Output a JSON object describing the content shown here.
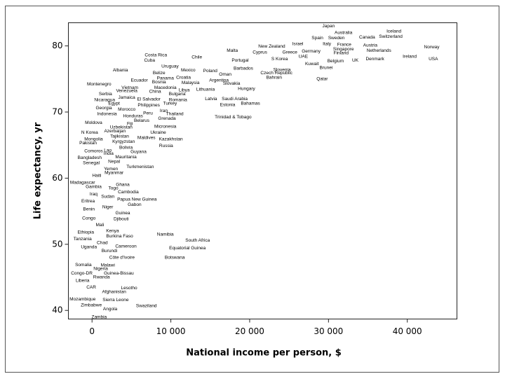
{
  "chart_data": {
    "type": "scatter",
    "xlabel": "National income per person, $",
    "ylabel": "Life expectancy, yr",
    "xlim": [
      -3000,
      46300
    ],
    "ylim": [
      38.7,
      83.5
    ],
    "xticks": [
      0,
      {
        "value": 10000,
        "label": "10 000"
      },
      {
        "value": 20000,
        "label": "20 000"
      },
      {
        "value": 30000,
        "label": "30 000"
      },
      {
        "value": 40000,
        "label": "40 000"
      }
    ],
    "yticks": [
      40,
      50,
      60,
      70,
      80
    ],
    "color": "#000000",
    "labels": [
      "Japan",
      "Iceland",
      "Australia",
      "Switzerland",
      "Spain",
      "Sweden",
      "Canada",
      "Israel",
      "Italy",
      "France",
      "Austria",
      "New Zealand",
      "Norway",
      "Malta",
      "Cyprus",
      "Greece",
      "Germany",
      "Singapore",
      "Finland",
      "Netherlands",
      "Ireland",
      "USA",
      "Costa Rica",
      "Chile",
      "Cuba",
      "Portugal",
      "S Korea",
      "UAE",
      "Belgium",
      "UK",
      "Denmark",
      "Kuwait",
      "Brunei",
      "Uruguay",
      "Albania",
      "Belize",
      "Mexico",
      "Poland",
      "Barbados",
      "Slovenia",
      "Czech Republic",
      "Bahrain",
      "Qatar",
      "Oman",
      "Panama",
      "Croatia",
      "Ecuador",
      "Bosnia",
      "Argentina",
      "Montenegro",
      "Malaysia",
      "Slovakia",
      "Macedonia",
      "Vietnam",
      "Libya",
      "Lithuania",
      "Hungary",
      "Venezuela",
      "China",
      "Serbia",
      "Bulgaria",
      "Jamaica",
      "Nicaragua",
      "Egypt",
      "El Salvador",
      "Romania",
      "Latvia",
      "Saudi Arabia",
      "Bahamas",
      "Turkey",
      "Estonia",
      "Philippines",
      "Georgia",
      "Morocco",
      "Iran",
      "Peru",
      "Thailand",
      "Indonesia",
      "Honduras",
      "Trinidad & Tobago",
      "Grenada",
      "Belarus",
      "Fiji",
      "Moldova",
      "Micronesia",
      "Uzbekistan",
      "Ukraine",
      "N Korea",
      "Azerbaijan",
      "Tajikistan",
      "Mongolia",
      "Maldives",
      "Kazakhstan",
      "Pakistan",
      "Kyrgyzstan",
      "Russia",
      "Bolivia",
      "Comoros",
      "Lao",
      "Guyana",
      "India",
      "Mauritania",
      "Bangladesh",
      "Nepal",
      "Senegal",
      "Turkmenistan",
      "Yemen",
      "Myanmar",
      "Haiti",
      "Madagascar",
      "Ghana",
      "Gambia",
      "Togo",
      "Cambodia",
      "Iraq",
      "Sudan",
      "Papua New Guinea",
      "Eritrea",
      "Gabon",
      "Niger",
      "Benin",
      "Guinea",
      "Congo",
      "Djibouti",
      "Mali",
      "Kenya",
      "Ethiopia",
      "Namibia",
      "Burkina Faso",
      "Tanzania",
      "South Africa",
      "Chad",
      "Uganda",
      "Cameroon",
      "Equatorial Guinea",
      "Burundi",
      "Côte d'Ivoire",
      "Botswana",
      "Somalia",
      "Malawi",
      "Nigeria",
      "Congo-DR",
      "Guinea-Bissau",
      "Rwanda",
      "Liberia",
      "CAR",
      "Lesotho",
      "Afghanistan",
      "Mozambique",
      "Sierra Leone",
      "Zimbabwe",
      "Swaziland",
      "Angola",
      "Zambia"
    ],
    "x": [
      30000,
      38300,
      31900,
      37900,
      28600,
      31000,
      34900,
      26100,
      29800,
      32000,
      35300,
      22800,
      43100,
      17800,
      21300,
      25100,
      27800,
      31900,
      31600,
      36400,
      40300,
      43300,
      8100,
      13300,
      7300,
      18800,
      23800,
      26800,
      30900,
      33400,
      35900,
      27900,
      29700,
      9900,
      3600,
      8500,
      12200,
      15000,
      19200,
      24100,
      23400,
      23100,
      29200,
      16900,
      9300,
      11600,
      6000,
      8500,
      16100,
      900,
      12500,
      17700,
      9300,
      4800,
      11700,
      14400,
      19600,
      4400,
      8000,
      1700,
      10800,
      4400,
      1600,
      2800,
      7200,
      10900,
      15100,
      18100,
      20100,
      9900,
      17200,
      7200,
      1500,
      4400,
      9100,
      7100,
      10500,
      1900,
      5200,
      17900,
      9500,
      6300,
      4800,
      200,
      9300,
      3700,
      8400,
      -300,
      2900,
      3500,
      200,
      6900,
      10000,
      -500,
      4000,
      9400,
      4300,
      200,
      2000,
      5900,
      2100,
      4300,
      -300,
      2800,
      -100,
      6100,
      2400,
      2800,
      600,
      -1200,
      3900,
      200,
      2700,
      4600,
      200,
      2000,
      5700,
      -500,
      5400,
      2000,
      -400,
      3900,
      -400,
      3700,
      1000,
      2600,
      -800,
      9300,
      3500,
      -1200,
      13400,
      1300,
      -400,
      4300,
      12100,
      2200,
      3800,
      10500,
      -1100,
      2000,
      1100,
      -1300,
      3400,
      1200,
      -1200,
      -100,
      4700,
      2800,
      -1200,
      3000,
      -100,
      6900,
      2300,
      900
    ],
    "y": [
      83.0,
      82.2,
      82.0,
      81.4,
      81.2,
      81.2,
      81.3,
      80.3,
      80.3,
      80.2,
      80.1,
      79.9,
      79.8,
      79.3,
      79.0,
      79.0,
      79.2,
      79.5,
      78.9,
      79.3,
      78.4,
      78.0,
      78.6,
      78.3,
      77.8,
      77.8,
      78.0,
      78.4,
      77.7,
      77.8,
      78.0,
      77.3,
      76.7,
      76.9,
      76.3,
      75.9,
      76.3,
      76.2,
      76.6,
      76.4,
      75.9,
      75.2,
      75.0,
      75.7,
      75.1,
      75.2,
      74.8,
      74.5,
      74.8,
      74.2,
      74.4,
      74.3,
      73.7,
      73.7,
      73.3,
      73.4,
      73.5,
      73.2,
      73.1,
      72.7,
      72.7,
      72.2,
      71.8,
      71.3,
      71.9,
      71.8,
      72.0,
      72.0,
      71.3,
      71.3,
      71.1,
      71.0,
      70.6,
      70.4,
      70.2,
      69.8,
      69.7,
      69.7,
      69.4,
      69.2,
      69.0,
      68.7,
      68.2,
      68.4,
      67.8,
      67.7,
      66.9,
      66.9,
      67.1,
      66.3,
      65.9,
      66.1,
      65.9,
      65.3,
      65.5,
      64.9,
      64.6,
      64.1,
      64.2,
      64.0,
      63.7,
      63.2,
      63.1,
      62.5,
      62.3,
      61.7,
      61.4,
      60.8,
      60.4,
      59.3,
      59.0,
      58.7,
      58.5,
      57.9,
      57.6,
      57.2,
      56.8,
      56.5,
      56.0,
      55.6,
      55.3,
      54.7,
      53.9,
      53.8,
      52.9,
      52.0,
      51.8,
      51.5,
      51.2,
      50.8,
      50.6,
      50.2,
      49.6,
      49.7,
      49.4,
      49.0,
      48.0,
      48.0,
      46.9,
      46.8,
      46.3,
      45.6,
      45.6,
      45.0,
      44.5,
      43.5,
      43.4,
      42.8,
      41.7,
      41.6,
      40.8,
      40.7,
      40.2,
      39.0
    ]
  }
}
